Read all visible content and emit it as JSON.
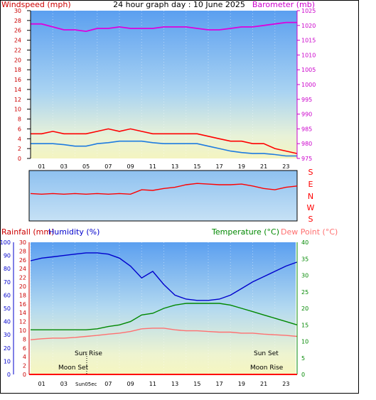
{
  "header": {
    "title": "24 hour graph day : 10 June 2025",
    "left_axis_title": "Windspeed (mph)",
    "right_axis_title": "Barometer (mb)"
  },
  "colors": {
    "wind": "#ff0000",
    "gust_avg": "#1e7be0",
    "barometer": "#dd00dd",
    "direction": "#ff0000",
    "humidity": "#0000cc",
    "temperature": "#008800",
    "dewpoint": "#ff7070",
    "rainfall": "#cc0000",
    "axis_text_left_top": "#cc0000",
    "axis_text_right_top": "#cc00cc",
    "axis_text_humidity": "#0000cc",
    "axis_text_temp": "#008800"
  },
  "hours_axis": {
    "labels": [
      "01",
      "03",
      "05",
      "07",
      "09",
      "11",
      "13",
      "15",
      "17",
      "19",
      "21",
      "23"
    ]
  },
  "compass": {
    "labels": [
      "S",
      "E",
      "N",
      "W",
      "S"
    ]
  },
  "bottom_header": {
    "rain_title": "Rainfall (mm)",
    "humidity_title": "Humidity (%)",
    "temp_title": "Temperature (°C)",
    "dew_title": "Dew Point (°C)"
  },
  "annotations": {
    "sun_rise": "Sun Rise",
    "sun_set": "Sun Set",
    "moon_set": "Moon Set",
    "moon_rise": "Moon Rise",
    "sun_overlap": "Sun05ec"
  },
  "chart_data": [
    {
      "type": "line",
      "title": "24 hour graph day : 10 June 2025",
      "ylabel": "Windspeed (mph)",
      "y2label": "Barometer (mb)",
      "ylim": [
        0,
        30
      ],
      "y_ticks": [
        0,
        2,
        4,
        6,
        8,
        10,
        12,
        14,
        16,
        18,
        20,
        22,
        24,
        26,
        28,
        30
      ],
      "y2lim": [
        975,
        1025
      ],
      "y2_ticks": [
        975,
        980,
        985,
        990,
        995,
        1000,
        1005,
        1010,
        1015,
        1020,
        1025
      ],
      "x_hours": [
        0,
        1,
        2,
        3,
        4,
        5,
        6,
        7,
        8,
        9,
        10,
        11,
        12,
        13,
        14,
        15,
        16,
        17,
        18,
        19,
        20,
        21,
        22,
        23,
        24
      ],
      "series": [
        {
          "name": "Windspeed",
          "values": [
            5,
            5,
            5.5,
            5,
            5,
            5,
            5.5,
            6,
            5.5,
            6,
            5.5,
            5,
            5,
            5,
            5,
            5,
            4.5,
            4,
            3.5,
            3.5,
            3,
            3,
            2,
            1.5,
            1
          ]
        },
        {
          "name": "Average",
          "values": [
            3,
            3,
            3,
            2.8,
            2.5,
            2.5,
            3,
            3.2,
            3.5,
            3.5,
            3.5,
            3.2,
            3,
            3,
            3,
            3,
            2.5,
            2,
            1.5,
            1.2,
            1,
            1,
            0.8,
            0.5,
            0.5
          ]
        },
        {
          "name": "Barometer",
          "values": [
            1020.5,
            1020.5,
            1019.5,
            1018.5,
            1018.5,
            1018,
            1019,
            1019,
            1019.5,
            1019,
            1019,
            1019,
            1019.5,
            1019.5,
            1019.5,
            1019,
            1018.5,
            1018.5,
            1019,
            1019.5,
            1019.5,
            1020,
            1020.5,
            1021,
            1021
          ]
        }
      ]
    },
    {
      "type": "line",
      "ylabel": "Wind direction",
      "y_ticks": [
        "S",
        "E",
        "N",
        "W",
        "S"
      ],
      "series": [
        {
          "name": "Direction",
          "values": [
            340,
            345,
            340,
            345,
            340,
            345,
            340,
            345,
            340,
            345,
            310,
            315,
            300,
            290,
            270,
            260,
            265,
            270,
            270,
            265,
            280,
            300,
            310,
            290,
            280
          ]
        }
      ]
    },
    {
      "type": "line",
      "y_humidity_ticks": [
        0,
        10,
        20,
        30,
        40,
        50,
        60,
        70,
        80,
        90,
        100
      ],
      "y_rain_ticks": [
        0,
        2,
        4,
        6,
        8,
        10,
        12,
        14,
        16,
        18,
        20,
        22,
        24,
        26,
        28,
        30
      ],
      "y_temp_ticks": [
        0,
        5,
        10,
        15,
        20,
        25,
        30,
        35,
        40
      ],
      "series": [
        {
          "name": "Humidity",
          "values": [
            86,
            88,
            89,
            90,
            91,
            92,
            92,
            91,
            88,
            82,
            73,
            78,
            68,
            60,
            57,
            56,
            56,
            57,
            60,
            65,
            70,
            74,
            78,
            82,
            85
          ]
        },
        {
          "name": "Temperature",
          "values": [
            13.5,
            13.5,
            13.5,
            13.5,
            13.5,
            13.5,
            13.8,
            14.5,
            15,
            16,
            18,
            18.5,
            20,
            21,
            21.5,
            21.5,
            21.5,
            21.5,
            21,
            20,
            19,
            18,
            17,
            16,
            15
          ]
        },
        {
          "name": "Dew Point",
          "values": [
            10.5,
            10.8,
            11,
            11,
            11.2,
            11.5,
            11.8,
            12.2,
            12.5,
            13,
            13.8,
            14,
            14,
            13.5,
            13.2,
            13.2,
            13,
            12.8,
            12.8,
            12.5,
            12.5,
            12.2,
            12,
            11.8,
            11.5
          ]
        },
        {
          "name": "Rainfall",
          "values": [
            0,
            0,
            0,
            0,
            0,
            0,
            0,
            0,
            0,
            0,
            0,
            0,
            0,
            0,
            0,
            0,
            0,
            0,
            0,
            0,
            0,
            0,
            0,
            0,
            0
          ]
        }
      ]
    }
  ]
}
